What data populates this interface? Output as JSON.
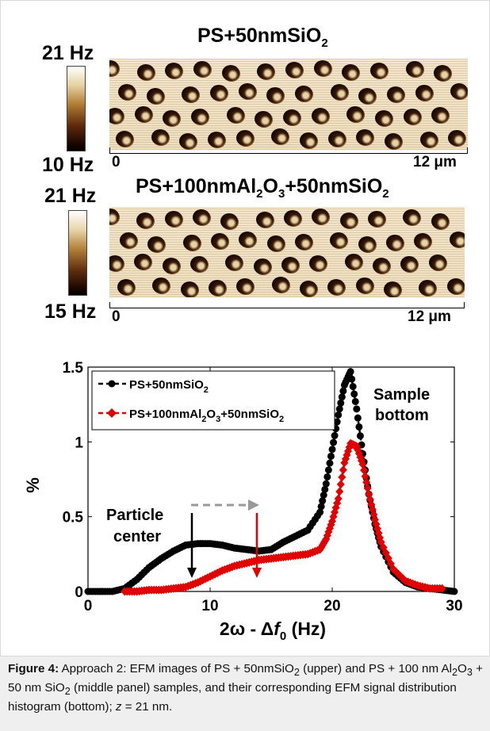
{
  "panels": {
    "top": {
      "title": "PS+50nmSiO",
      "title_sub": "2",
      "cb_max": "21 Hz",
      "cb_min": "10 Hz",
      "scale_start": "0",
      "scale_end": "12 μm"
    },
    "middle": {
      "title_parts": [
        "PS+100nmAl",
        "2",
        "O",
        "3",
        "+50nmSiO",
        "2"
      ],
      "cb_max": "21 Hz",
      "cb_min": "15 Hz",
      "scale_start": "0",
      "scale_end": "12 μm"
    }
  },
  "annotations": {
    "sample_bottom": [
      "Sample",
      "bottom"
    ],
    "particle_center": [
      "Particle",
      "center"
    ]
  },
  "chart_data": {
    "type": "line",
    "xlabel": "2ω - Δf0 (Hz)",
    "ylabel": "%",
    "xlim": [
      0,
      30
    ],
    "ylim": [
      0,
      1.5
    ],
    "xticks": [
      "0",
      "10",
      "20",
      "30"
    ],
    "yticks": [
      "0",
      "0.5",
      "1",
      "1.5"
    ],
    "legend_position": "top-left",
    "series": [
      {
        "name": "PS+50nmSiO2",
        "legend_parts": [
          "PS+50nmSiO",
          "2"
        ],
        "color": "#000000",
        "marker": "circle",
        "x": [
          0,
          1,
          2,
          3,
          4,
          5,
          6,
          7,
          8,
          9,
          10,
          11,
          12,
          13,
          14,
          15,
          16,
          17,
          18,
          19,
          19.5,
          20,
          20.5,
          21,
          21.5,
          22,
          22.5,
          23,
          23.5,
          24,
          25,
          26,
          27,
          28,
          29,
          30
        ],
        "y": [
          0.0,
          0.0,
          0.0,
          0.02,
          0.08,
          0.16,
          0.22,
          0.27,
          0.31,
          0.32,
          0.32,
          0.31,
          0.29,
          0.28,
          0.27,
          0.28,
          0.33,
          0.37,
          0.41,
          0.53,
          0.72,
          0.95,
          1.18,
          1.38,
          1.47,
          1.22,
          0.92,
          0.65,
          0.45,
          0.3,
          0.13,
          0.06,
          0.03,
          0.02,
          0.01,
          0.0
        ]
      },
      {
        "name": "PS+100nmAl2O3+50nmSiO2",
        "legend_parts": [
          "PS+100nmAl",
          "2",
          "O",
          "3",
          "+50nmSiO",
          "2"
        ],
        "color": "#e00000",
        "marker": "diamond",
        "x": [
          3,
          4,
          5,
          6,
          7,
          8,
          9,
          10,
          11,
          12,
          13,
          14,
          15,
          16,
          17,
          18,
          19,
          19.5,
          20,
          20.5,
          21,
          21.5,
          22,
          22.5,
          23,
          23.5,
          24,
          25,
          26,
          27,
          28,
          29
        ],
        "y": [
          0.0,
          0.0,
          0.01,
          0.01,
          0.02,
          0.03,
          0.06,
          0.1,
          0.14,
          0.17,
          0.19,
          0.21,
          0.22,
          0.23,
          0.24,
          0.25,
          0.28,
          0.35,
          0.47,
          0.62,
          0.86,
          0.99,
          0.97,
          0.85,
          0.65,
          0.48,
          0.33,
          0.15,
          0.07,
          0.04,
          0.02,
          0.02
        ]
      }
    ]
  },
  "caption": {
    "label": "Figure 4:",
    "p1": " Approach 2: EFM images of PS + 50nmSiO",
    "s1": "2",
    "p2": " (upper) and PS + 100 nm Al",
    "s2": "2",
    "p3": "O",
    "s3": "3",
    "p4": " + 50 nm SiO",
    "s4": "2",
    "p5": " (middle panel) samples, and their corresponding EFM signal distribution histogram (bottom); ",
    "z": "z",
    "p6": " = 21 nm."
  }
}
